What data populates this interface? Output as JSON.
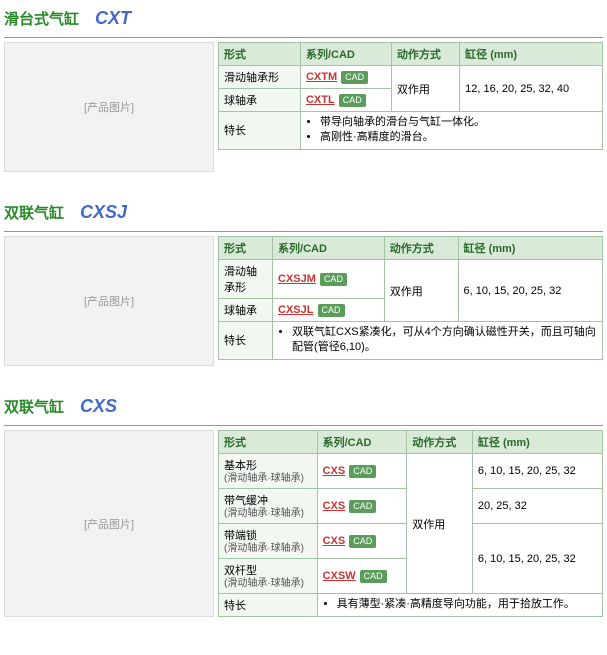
{
  "products": [
    {
      "title_cn": "滑台式气缸",
      "title_code": "CXT",
      "image_label": "[产品图片]",
      "headers": [
        "形式",
        "系列/CAD",
        "动作方式",
        "缸径 (mm)"
      ],
      "rows": [
        {
          "form": "滑动轴承形",
          "series_link": "CXTM",
          "cad_label": "CAD",
          "action": "双作用",
          "bore": "12, 16, 20, 25, 32, 40",
          "action_rowspan": 2,
          "bore_rowspan": 2
        },
        {
          "form": "球轴承",
          "series_link": "CXTL",
          "cad_label": "CAD"
        }
      ],
      "feature_label": "特长",
      "features": [
        "带导向轴承的滑台与气缸一体化。",
        "高刚性·高精度的滑台。"
      ]
    },
    {
      "title_cn": "双联气缸",
      "title_code": "CXSJ",
      "image_label": "[产品图片]",
      "headers": [
        "形式",
        "系列/CAD",
        "动作方式",
        "缸径 (mm)"
      ],
      "rows": [
        {
          "form": "滑动轴承形",
          "series_link": "CXSJM",
          "cad_label": "CAD",
          "action": "双作用",
          "bore": "6, 10, 15, 20, 25, 32",
          "action_rowspan": 2,
          "bore_rowspan": 2
        },
        {
          "form": "球轴承",
          "series_link": "CXSJL",
          "cad_label": "CAD"
        }
      ],
      "feature_label": "特长",
      "features": [
        "双联气缸CXS紧凑化，可从4个方向确认磁性开关，而且可轴向配管(管径6,10)。"
      ]
    },
    {
      "title_cn": "双联气缸",
      "title_code": "CXS",
      "image_label": "[产品图片]",
      "headers": [
        "形式",
        "系列/CAD",
        "动作方式",
        "缸径 (mm)"
      ],
      "rows": [
        {
          "form": "基本形",
          "form_sub": "(滑动轴承·球轴承)",
          "series_link": "CXS",
          "cad_label": "CAD",
          "action": "双作用",
          "bore": "6, 10, 15, 20, 25, 32",
          "action_rowspan": 4
        },
        {
          "form": "带气缓冲",
          "form_sub": "(滑动轴承·球轴承)",
          "series_link": "CXS",
          "cad_label": "CAD",
          "bore": "20, 25, 32"
        },
        {
          "form": "带端锁",
          "form_sub": "(滑动轴承·球轴承)",
          "series_link": "CXS",
          "cad_label": "CAD",
          "bore": "6, 10, 15, 20, 25, 32",
          "bore_rowspan": 2
        },
        {
          "form": "双杆型",
          "form_sub": "(滑动轴承·球轴承)",
          "series_link": "CXSW",
          "cad_label": "CAD"
        }
      ],
      "feature_label": "特长",
      "features": [
        "具有薄型·紧凑·高精度导向功能，用于拾放工作。"
      ]
    }
  ],
  "colors": {
    "title_cn": "#2a8a2a",
    "title_code": "#4169c9",
    "border": "#a3c4a3",
    "th_bg": "#d9ead9",
    "th_fg": "#2a6a2a",
    "link": "#cc3333",
    "cad_bg": "#5a9c5a"
  }
}
